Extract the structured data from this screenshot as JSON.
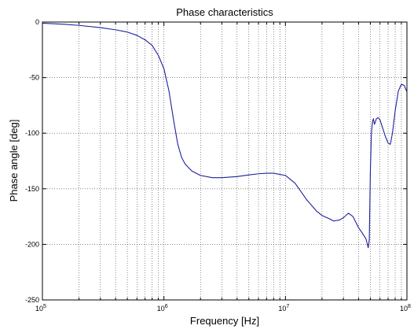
{
  "chart_data": {
    "type": "line",
    "title": "Phase characteristics",
    "xlabel": "Frequency [Hz]",
    "ylabel": "Phase angle [deg]",
    "xscale": "log",
    "xlim": [
      100000,
      100000000
    ],
    "ylim": [
      -250,
      0
    ],
    "grid": true,
    "x_ticks": [
      {
        "base": "10",
        "exp": "5"
      },
      {
        "base": "10",
        "exp": "6"
      },
      {
        "base": "10",
        "exp": "7"
      },
      {
        "base": "10",
        "exp": "8"
      }
    ],
    "y_ticks": [
      "0",
      "-50",
      "-100",
      "-150",
      "-200",
      "-250"
    ],
    "y_tick_values": [
      0,
      -50,
      -100,
      -150,
      -200,
      -250
    ],
    "series": [
      {
        "color": "#1f1f9e",
        "x": [
          100000,
          150000,
          200000,
          300000,
          400000,
          500000,
          600000,
          700000,
          800000,
          900000,
          1000000,
          1100000,
          1200000,
          1300000,
          1400000,
          1500000,
          1700000,
          2000000,
          2500000,
          3000000,
          4000000,
          5000000,
          6000000,
          7000000,
          8000000,
          10000000,
          12000000,
          15000000,
          18000000,
          20000000,
          23000000,
          25000000,
          28000000,
          30000000,
          33000000,
          36000000,
          40000000,
          43000000,
          46000000,
          48000000,
          49000000,
          50000000,
          51000000,
          52000000,
          53000000,
          54000000,
          55000000,
          56000000,
          58000000,
          60000000,
          63000000,
          66000000,
          70000000,
          73000000,
          76000000,
          80000000,
          85000000,
          90000000,
          95000000,
          100000000
        ],
        "y": [
          -1,
          -2,
          -3,
          -5,
          -7,
          -9,
          -12,
          -16,
          -21,
          -30,
          -42,
          -62,
          -88,
          -110,
          -122,
          -128,
          -134,
          -138,
          -140,
          -140,
          -139,
          -137.5,
          -136.5,
          -136,
          -136,
          -138,
          -145,
          -160,
          -170,
          -174,
          -177,
          -179,
          -178,
          -176,
          -172,
          -175,
          -185,
          -190,
          -195,
          -203,
          -196,
          -135,
          -100,
          -90,
          -87,
          -92,
          -90,
          -87,
          -86,
          -88,
          -95,
          -102,
          -109,
          -110,
          -100,
          -80,
          -62,
          -56,
          -57,
          -63
        ]
      }
    ]
  }
}
